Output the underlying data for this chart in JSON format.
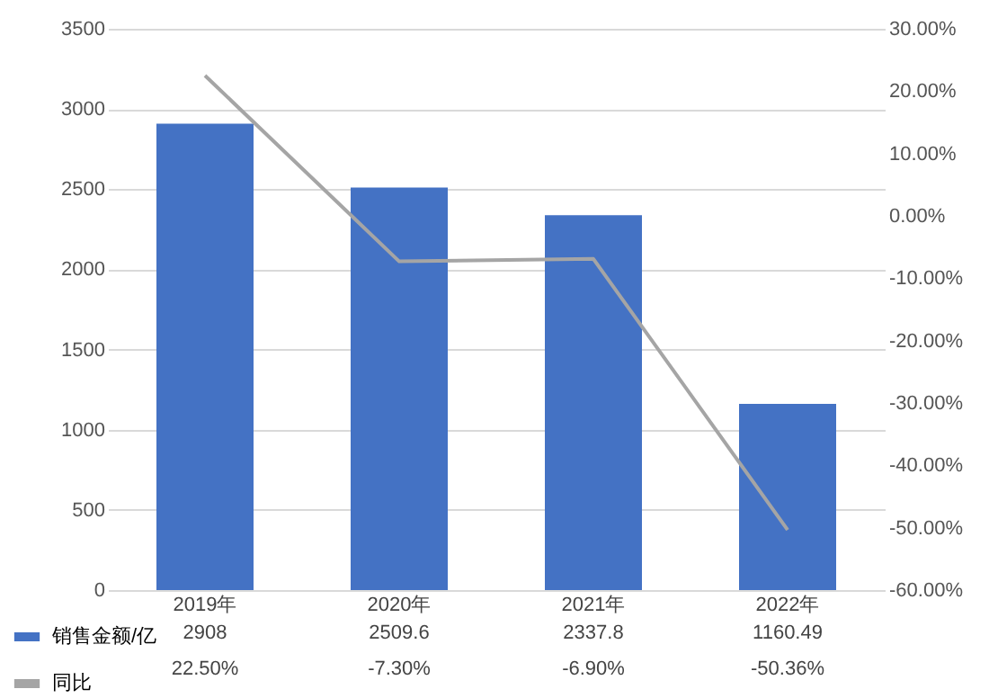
{
  "chart_data": {
    "type": "bar",
    "categories": [
      "2019年",
      "2020年",
      "2021年",
      "2022年"
    ],
    "series": [
      {
        "name": "销售金额/亿",
        "color": "#4472c4",
        "values": [
          2908,
          2509.6,
          2337.8,
          1160.49
        ],
        "value_labels": [
          "2908",
          "2509.6",
          "2337.8",
          "1160.49"
        ]
      },
      {
        "name": "同比",
        "type": "line",
        "axis": "y2",
        "color": "#a5a5a5",
        "values": [
          22.5,
          -7.3,
          -6.9,
          -50.36
        ],
        "value_labels": [
          "22.50%",
          "-7.30%",
          "-6.90%",
          "-50.36%"
        ]
      }
    ],
    "ylim": [
      0,
      3500
    ],
    "yticks": [
      0,
      500,
      1000,
      1500,
      2000,
      2500,
      3000,
      3500
    ],
    "y2lim": [
      -60,
      30
    ],
    "y2ticks": [
      {
        "value": -60,
        "label": "-60.00%"
      },
      {
        "value": -50,
        "label": "-50.00%"
      },
      {
        "value": -40,
        "label": "-40.00%"
      },
      {
        "value": -30,
        "label": "-30.00%"
      },
      {
        "value": -20,
        "label": "-20.00%"
      },
      {
        "value": -10,
        "label": "-10.00%"
      },
      {
        "value": 0,
        "label": "0.00%"
      },
      {
        "value": 10,
        "label": "10.00%"
      },
      {
        "value": 20,
        "label": "20.00%"
      },
      {
        "value": 30,
        "label": "30.00%"
      }
    ],
    "grid": "y",
    "legend": "bottom",
    "marker": "none",
    "line_style": "solid"
  }
}
